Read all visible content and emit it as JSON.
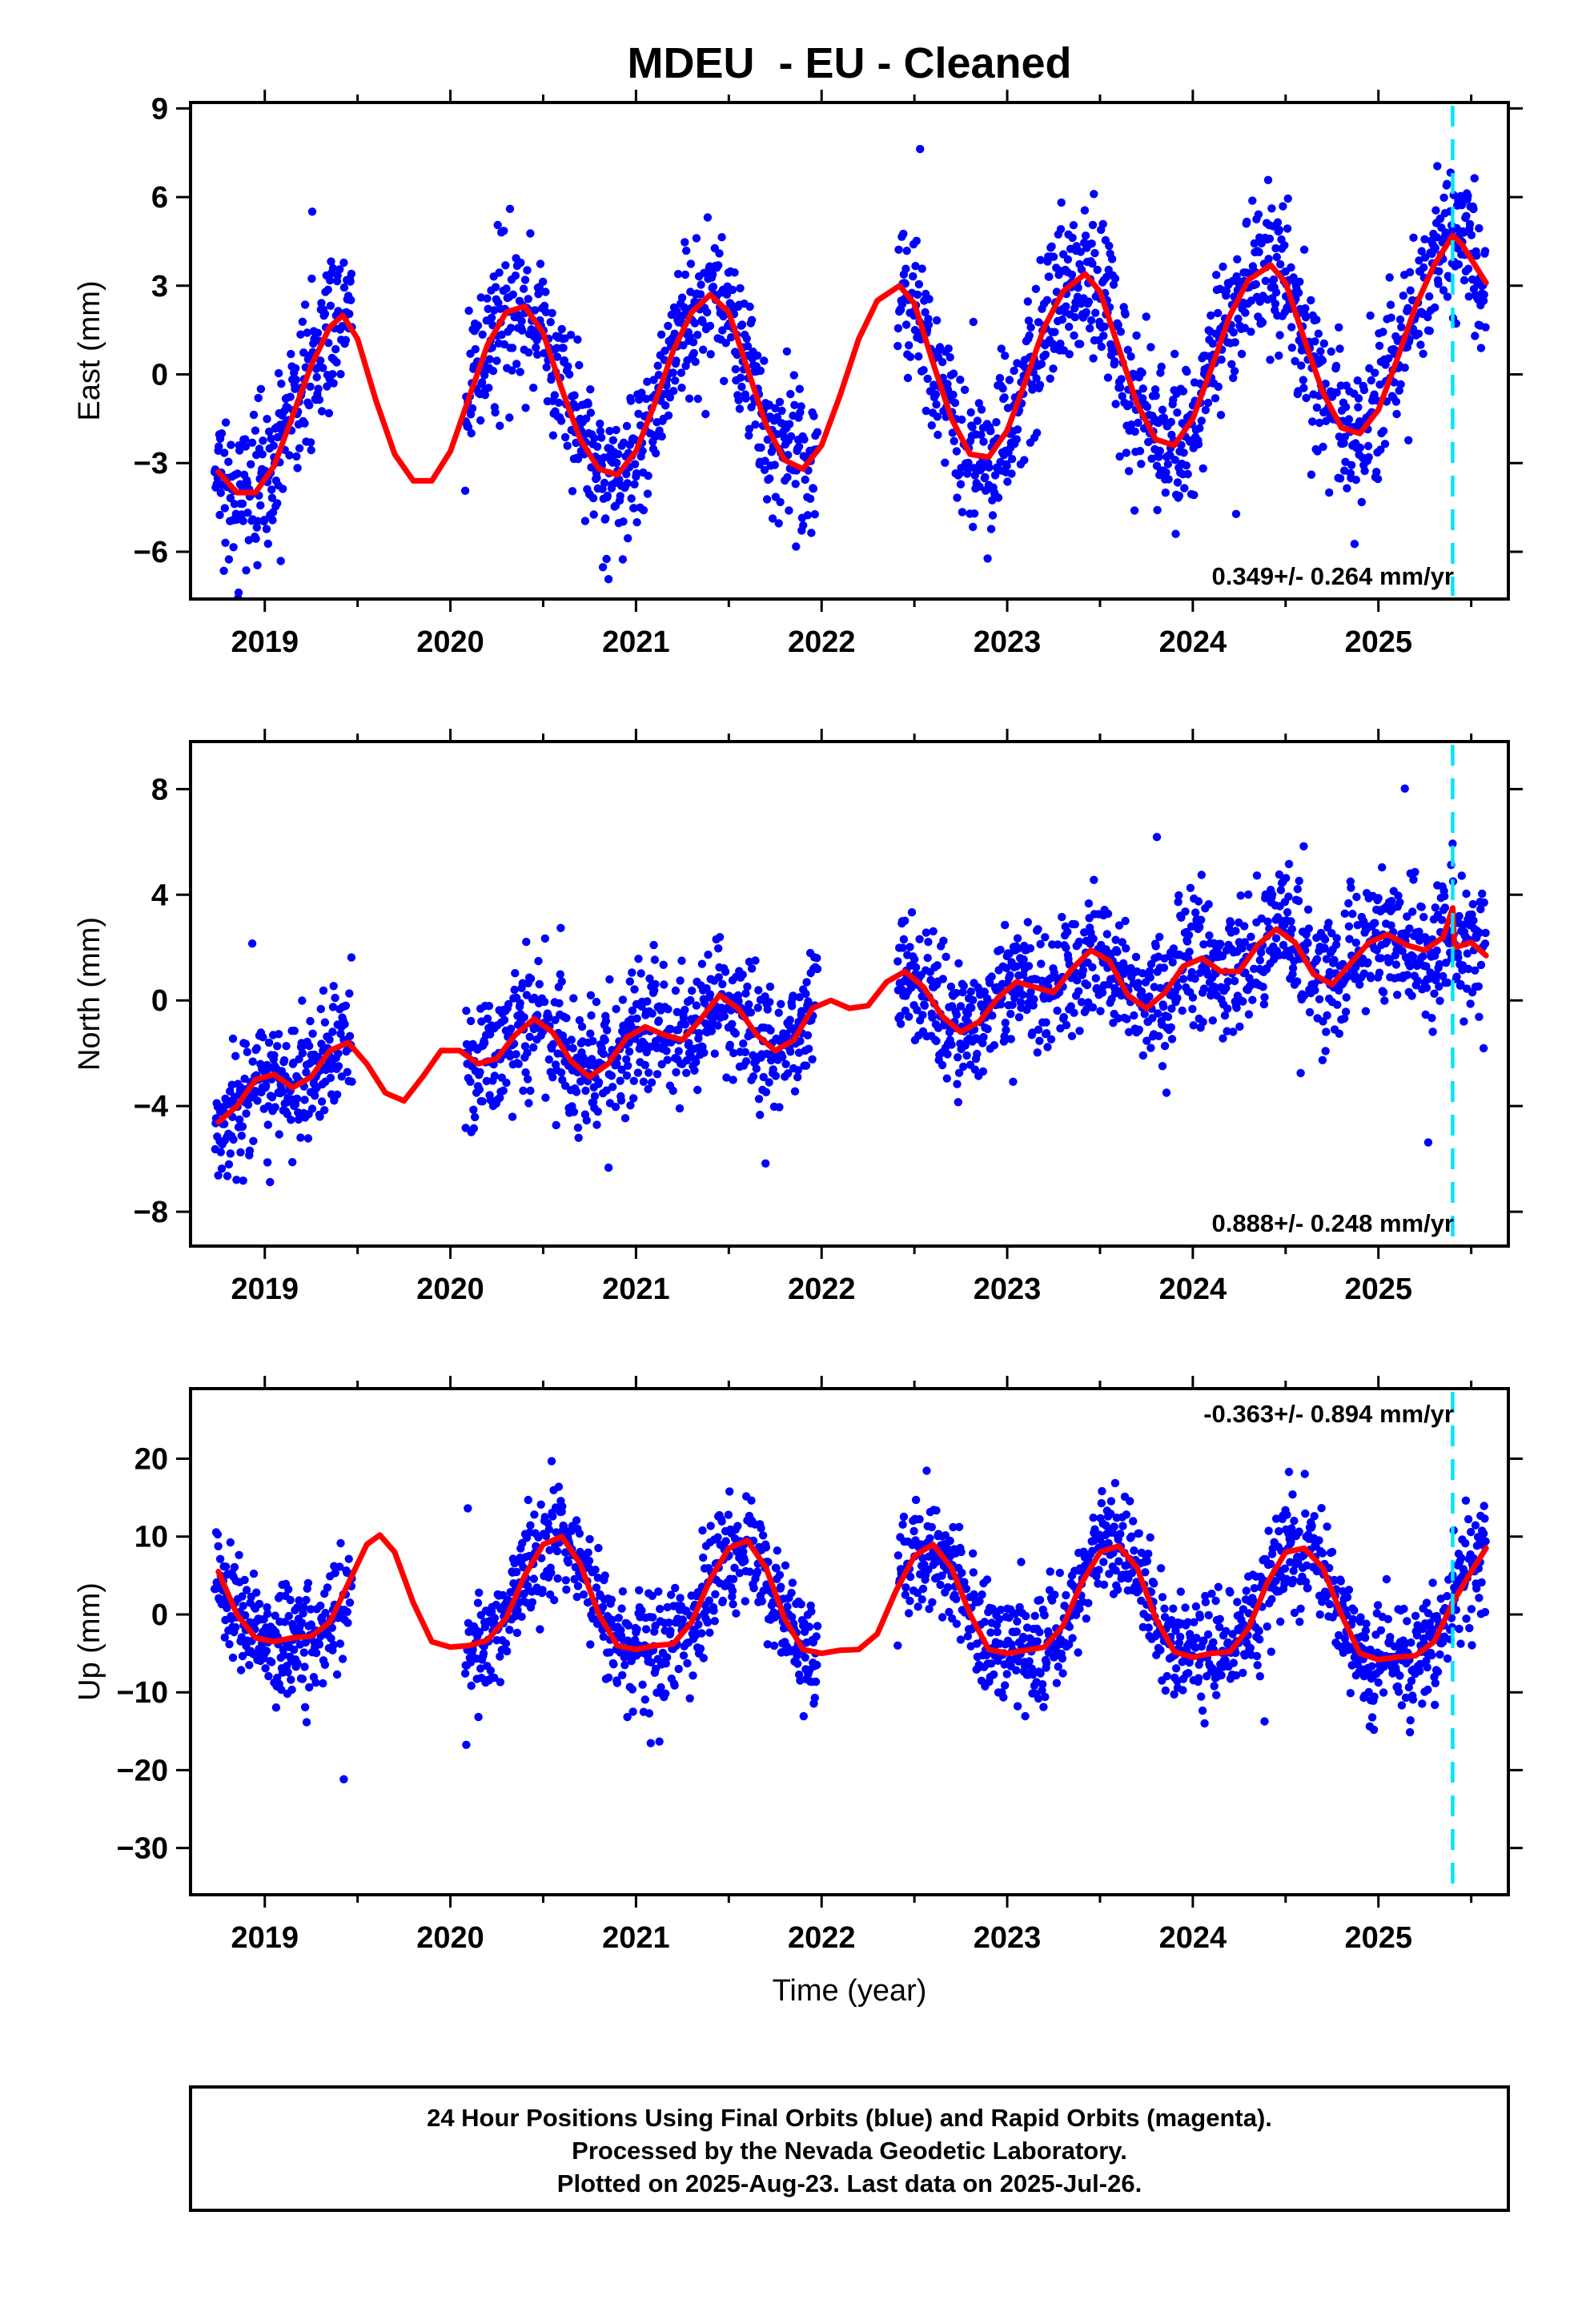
{
  "chart_data": {
    "title": "MDEU  - EU - Cleaned",
    "xlabel": "Time (year)",
    "x_ticks": [
      2019,
      2020,
      2021,
      2022,
      2023,
      2024,
      2025
    ],
    "xlim": [
      2018.6,
      2025.7
    ],
    "last_data_marker_year": 2025.4,
    "panels": [
      {
        "type": "scatter",
        "ylabel": "East (mm)",
        "ylim": [
          -7.6,
          9.2
        ],
        "y_ticks": [
          9,
          6,
          3,
          0,
          -3,
          -6
        ],
        "y_tick_labels": [
          "9",
          "6",
          "3",
          "0",
          "−3",
          "−6"
        ],
        "rate_label": "0.349+/- 0.264 mm/yr",
        "rate_position": "bottom-right",
        "fit": {
          "x": [
            2018.75,
            2018.85,
            2018.95,
            2019.05,
            2019.15,
            2019.25,
            2019.35,
            2019.42,
            2019.5,
            2019.6,
            2019.7,
            2019.8,
            2019.9,
            2020.0,
            2020.1,
            2020.2,
            2020.3,
            2020.4,
            2020.5,
            2020.6,
            2020.7,
            2020.8,
            2020.9,
            2021.0,
            2021.1,
            2021.2,
            2021.3,
            2021.4,
            2021.5,
            2021.6,
            2021.7,
            2021.8,
            2021.9,
            2022.0,
            2022.1,
            2022.2,
            2022.3,
            2022.42,
            2022.5,
            2022.6,
            2022.7,
            2022.8,
            2022.9,
            2023.0,
            2023.1,
            2023.2,
            2023.3,
            2023.42,
            2023.5,
            2023.6,
            2023.7,
            2023.8,
            2023.9,
            2024.0,
            2024.1,
            2024.2,
            2024.3,
            2024.42,
            2024.5,
            2024.6,
            2024.7,
            2024.8,
            2024.9,
            2025.0,
            2025.1,
            2025.2,
            2025.3,
            2025.4,
            2025.45,
            2025.5,
            2025.58
          ],
          "y": [
            -3.3,
            -4.0,
            -4.0,
            -3.1,
            -1.4,
            0.3,
            1.6,
            2.0,
            1.2,
            -0.9,
            -2.7,
            -3.6,
            -3.6,
            -2.6,
            -0.8,
            1.0,
            2.1,
            2.3,
            1.4,
            -0.5,
            -2.2,
            -3.2,
            -3.4,
            -2.6,
            -1.0,
            0.8,
            2.1,
            2.7,
            2.1,
            0.2,
            -1.7,
            -2.9,
            -3.2,
            -2.4,
            -0.7,
            1.2,
            2.5,
            3.0,
            2.4,
            0.4,
            -1.5,
            -2.7,
            -2.8,
            -1.9,
            -0.2,
            1.6,
            2.8,
            3.4,
            2.8,
            0.9,
            -1.0,
            -2.2,
            -2.4,
            -1.5,
            0.2,
            2.0,
            3.2,
            3.7,
            3.1,
            1.2,
            -0.6,
            -1.8,
            -2.0,
            -1.2,
            0.5,
            2.3,
            3.7,
            4.7,
            4.4,
            3.9,
            3.1
          ]
        }
      },
      {
        "type": "scatter",
        "ylabel": "North (mm)",
        "ylim": [
          -9.3,
          9.8
        ],
        "y_ticks": [
          8,
          4,
          0,
          -4,
          -8
        ],
        "y_tick_labels": [
          "8",
          "4",
          "0",
          "−4",
          "−8"
        ],
        "rate_label": "0.888+/- 0.248 mm/yr",
        "rate_position": "bottom-right",
        "fit": {
          "x": [
            2018.75,
            2018.85,
            2018.95,
            2019.05,
            2019.15,
            2019.25,
            2019.35,
            2019.45,
            2019.55,
            2019.65,
            2019.75,
            2019.85,
            2019.95,
            2020.05,
            2020.15,
            2020.25,
            2020.35,
            2020.45,
            2020.55,
            2020.65,
            2020.75,
            2020.85,
            2020.95,
            2021.05,
            2021.15,
            2021.25,
            2021.35,
            2021.45,
            2021.55,
            2021.65,
            2021.75,
            2021.85,
            2021.95,
            2022.05,
            2022.15,
            2022.25,
            2022.35,
            2022.45,
            2022.55,
            2022.65,
            2022.75,
            2022.85,
            2022.95,
            2023.05,
            2023.15,
            2023.25,
            2023.35,
            2023.45,
            2023.55,
            2023.65,
            2023.75,
            2023.85,
            2023.95,
            2024.05,
            2024.15,
            2024.25,
            2024.35,
            2024.45,
            2024.55,
            2024.65,
            2024.75,
            2024.85,
            2024.95,
            2025.05,
            2025.15,
            2025.25,
            2025.35,
            2025.4,
            2025.41,
            2025.5,
            2025.58
          ],
          "y": [
            -4.6,
            -4.0,
            -3.0,
            -2.8,
            -3.3,
            -2.9,
            -1.9,
            -1.6,
            -2.4,
            -3.5,
            -3.8,
            -2.9,
            -1.9,
            -1.9,
            -2.4,
            -2.2,
            -1.3,
            -0.7,
            -1.2,
            -2.3,
            -2.9,
            -2.4,
            -1.4,
            -1.0,
            -1.3,
            -1.5,
            -0.7,
            0.2,
            -0.3,
            -1.3,
            -1.9,
            -1.5,
            -0.3,
            0.0,
            -0.3,
            -0.2,
            0.7,
            1.1,
            0.5,
            -0.6,
            -1.2,
            -0.8,
            0.1,
            0.7,
            0.5,
            0.3,
            1.2,
            1.9,
            1.5,
            0.2,
            -0.3,
            0.3,
            1.3,
            1.6,
            1.1,
            1.1,
            2.1,
            2.7,
            2.2,
            1.0,
            0.6,
            1.4,
            2.2,
            2.5,
            2.1,
            1.9,
            2.4,
            3.5,
            2.0,
            2.2,
            1.7
          ]
        }
      },
      {
        "type": "scatter",
        "ylabel": "Up (mm)",
        "ylim": [
          -36.0,
          29.0
        ],
        "y_ticks": [
          20,
          10,
          0,
          -10,
          -20,
          -30
        ],
        "y_tick_labels": [
          "20",
          "10",
          "0",
          "−10",
          "−20",
          "−30"
        ],
        "rate_label": "-0.363+/- 0.894 mm/yr",
        "rate_position": "top-right",
        "fit": {
          "x": [
            2018.75,
            2018.85,
            2018.95,
            2019.05,
            2019.15,
            2019.25,
            2019.35,
            2019.45,
            2019.55,
            2019.62,
            2019.7,
            2019.8,
            2019.9,
            2020.0,
            2020.1,
            2020.2,
            2020.3,
            2020.4,
            2020.5,
            2020.6,
            2020.7,
            2020.8,
            2020.9,
            2021.0,
            2021.1,
            2021.2,
            2021.3,
            2021.4,
            2021.5,
            2021.6,
            2021.7,
            2021.8,
            2021.9,
            2022.0,
            2022.1,
            2022.2,
            2022.3,
            2022.4,
            2022.5,
            2022.6,
            2022.7,
            2022.8,
            2022.9,
            2023.0,
            2023.1,
            2023.2,
            2023.3,
            2023.4,
            2023.5,
            2023.6,
            2023.7,
            2023.8,
            2023.9,
            2024.0,
            2024.1,
            2024.2,
            2024.3,
            2024.4,
            2024.5,
            2024.6,
            2024.7,
            2024.8,
            2024.9,
            2025.0,
            2025.1,
            2025.2,
            2025.3,
            2025.4,
            2025.5,
            2025.58
          ],
          "y": [
            5.5,
            0.0,
            -3.0,
            -3.5,
            -3.0,
            -2.8,
            -1.0,
            4.0,
            9.0,
            10.2,
            8.0,
            1.5,
            -3.5,
            -4.2,
            -4.0,
            -3.3,
            -0.5,
            5.0,
            9.0,
            10.0,
            6.5,
            0.0,
            -4.0,
            -4.5,
            -4.0,
            -3.8,
            -1.0,
            4.5,
            8.5,
            9.5,
            6.0,
            -0.5,
            -4.5,
            -5.0,
            -4.6,
            -4.5,
            -2.5,
            3.0,
            7.5,
            9.0,
            6.0,
            0.0,
            -4.5,
            -5.0,
            -4.6,
            -4.2,
            -1.5,
            4.0,
            8.0,
            8.8,
            6.0,
            -0.5,
            -4.8,
            -5.5,
            -5.0,
            -4.8,
            -1.8,
            4.0,
            8.0,
            8.5,
            6.0,
            0.0,
            -5.0,
            -5.8,
            -5.5,
            -5.3,
            -3.5,
            1.5,
            5.5,
            8.5
          ]
        }
      }
    ],
    "footer": {
      "lines": [
        "24 Hour Positions Using Final Orbits (blue) and Rapid Orbits (magenta).",
        "Processed by the Nevada Geodetic Laboratory.",
        "Plotted on 2025-Aug-23. Last data on 2025-Jul-26."
      ]
    },
    "colors": {
      "points": "#0000ff",
      "fit": "#ff0000",
      "marker": "#00e5ff",
      "axes": "#000000"
    }
  }
}
